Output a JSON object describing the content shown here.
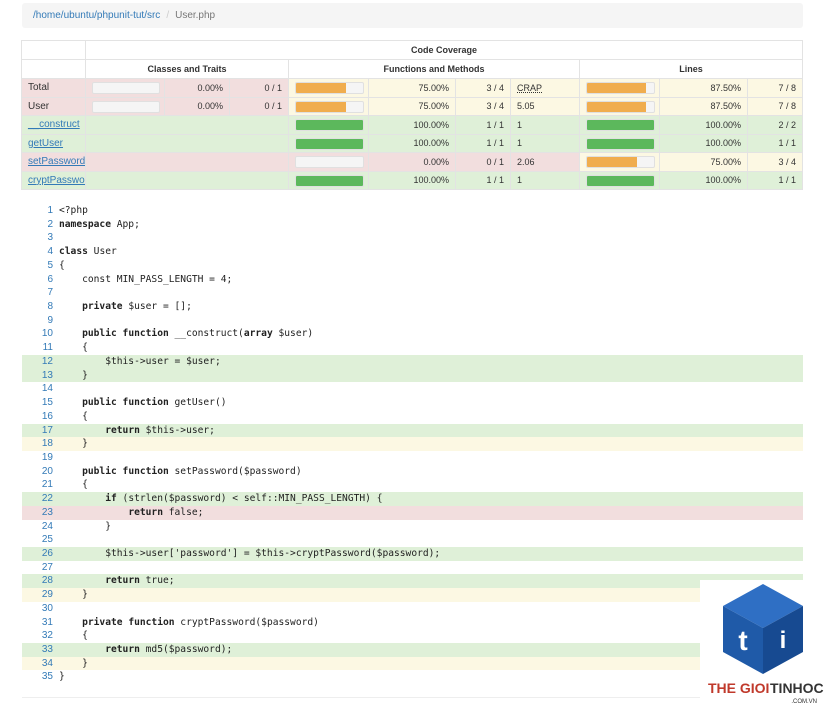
{
  "breadcrumb": {
    "path": "/home/ubuntu/phpunit-tut/src",
    "separator": "/",
    "file": "User.php"
  },
  "table": {
    "title": "Code Coverage",
    "groups": [
      "Classes and Traits",
      "Functions and Methods",
      "Lines"
    ],
    "rows": [
      {
        "name": "Total",
        "link": false,
        "level": "danger",
        "classes": {
          "percent": "0.00%",
          "ratio": "0 / 1",
          "level": "danger"
        },
        "functions": {
          "percent": "75.00%",
          "ratio": "3 / 4",
          "crap": "CRAP",
          "level": "warning"
        },
        "lines": {
          "percent": "87.50%",
          "ratio": "7 / 8",
          "level": "warning"
        }
      },
      {
        "name": "User",
        "link": false,
        "level": "danger",
        "classes": {
          "percent": "0.00%",
          "ratio": "0 / 1",
          "level": "danger"
        },
        "functions": {
          "percent": "75.00%",
          "ratio": "3 / 4",
          "crap": "5.05",
          "level": "warning"
        },
        "lines": {
          "percent": "87.50%",
          "ratio": "7 / 8",
          "level": "warning"
        }
      },
      {
        "name": "__construct",
        "link": true,
        "level": "success",
        "functions": {
          "percent": "100.00%",
          "ratio": "1 / 1",
          "crap": "1",
          "level": "success"
        },
        "lines": {
          "percent": "100.00%",
          "ratio": "2 / 2",
          "level": "success"
        }
      },
      {
        "name": "getUser",
        "link": true,
        "level": "success",
        "functions": {
          "percent": "100.00%",
          "ratio": "1 / 1",
          "crap": "1",
          "level": "success"
        },
        "lines": {
          "percent": "100.00%",
          "ratio": "1 / 1",
          "level": "success"
        }
      },
      {
        "name": "setPassword",
        "link": true,
        "level": "danger",
        "functions": {
          "percent": "0.00%",
          "ratio": "0 / 1",
          "crap": "2.06",
          "level": "danger"
        },
        "lines": {
          "percent": "75.00%",
          "ratio": "3 / 4",
          "level": "warning"
        }
      },
      {
        "name": "cryptPassword",
        "link": true,
        "level": "success",
        "functions": {
          "percent": "100.00%",
          "ratio": "1 / 1",
          "crap": "1",
          "level": "success"
        },
        "lines": {
          "percent": "100.00%",
          "ratio": "1 / 1",
          "level": "success"
        }
      }
    ]
  },
  "code": {
    "lines": [
      {
        "n": 1,
        "status": null,
        "code": [
          "<?php"
        ]
      },
      {
        "n": 2,
        "status": null,
        "code": [
          {
            "b": "namespace"
          },
          " App;"
        ]
      },
      {
        "n": 3,
        "status": null,
        "code": []
      },
      {
        "n": 4,
        "status": null,
        "code": [
          {
            "b": "class"
          },
          " User"
        ]
      },
      {
        "n": 5,
        "status": null,
        "code": [
          "{"
        ]
      },
      {
        "n": 6,
        "status": null,
        "code": [
          "    const MIN_PASS_LENGTH = 4;"
        ]
      },
      {
        "n": 7,
        "status": null,
        "code": []
      },
      {
        "n": 8,
        "status": null,
        "code": [
          "    ",
          {
            "b": "private"
          },
          " $user = [];"
        ]
      },
      {
        "n": 9,
        "status": null,
        "code": []
      },
      {
        "n": 10,
        "status": null,
        "code": [
          "    ",
          {
            "b": "public function"
          },
          " __construct(",
          {
            "b": "array"
          },
          " $user)"
        ]
      },
      {
        "n": 11,
        "status": null,
        "code": [
          "    {"
        ]
      },
      {
        "n": 12,
        "status": "success",
        "code": [
          "        $this->user = $user;"
        ]
      },
      {
        "n": 13,
        "status": "success",
        "code": [
          "    }"
        ]
      },
      {
        "n": 14,
        "status": null,
        "code": []
      },
      {
        "n": 15,
        "status": null,
        "code": [
          "    ",
          {
            "b": "public function"
          },
          " getUser()"
        ]
      },
      {
        "n": 16,
        "status": null,
        "code": [
          "    {"
        ]
      },
      {
        "n": 17,
        "status": "success",
        "code": [
          "        ",
          {
            "b": "return"
          },
          " $this->user;"
        ]
      },
      {
        "n": 18,
        "status": "warning",
        "code": [
          "    }"
        ]
      },
      {
        "n": 19,
        "status": null,
        "code": []
      },
      {
        "n": 20,
        "status": null,
        "code": [
          "    ",
          {
            "b": "public function"
          },
          " setPassword($password)"
        ]
      },
      {
        "n": 21,
        "status": null,
        "code": [
          "    {"
        ]
      },
      {
        "n": 22,
        "status": "success",
        "code": [
          "        ",
          {
            "b": "if"
          },
          " (strlen($password) < self::MIN_PASS_LENGTH) {"
        ]
      },
      {
        "n": 23,
        "status": "danger",
        "code": [
          "            ",
          {
            "b": "return"
          },
          " false;"
        ]
      },
      {
        "n": 24,
        "status": null,
        "code": [
          "        }"
        ]
      },
      {
        "n": 25,
        "status": null,
        "code": []
      },
      {
        "n": 26,
        "status": "success",
        "code": [
          "        $this->user['password'] = $this->cryptPassword($password);"
        ]
      },
      {
        "n": 27,
        "status": null,
        "code": []
      },
      {
        "n": 28,
        "status": "success",
        "code": [
          "        ",
          {
            "b": "return"
          },
          " true;"
        ]
      },
      {
        "n": 29,
        "status": "warning",
        "code": [
          "    }"
        ]
      },
      {
        "n": 30,
        "status": null,
        "code": []
      },
      {
        "n": 31,
        "status": null,
        "code": [
          "    ",
          {
            "b": "private function"
          },
          " cryptPassword($password)"
        ]
      },
      {
        "n": 32,
        "status": null,
        "code": [
          "    {"
        ]
      },
      {
        "n": 33,
        "status": "success",
        "code": [
          "        ",
          {
            "b": "return"
          },
          " md5($password);"
        ]
      },
      {
        "n": 34,
        "status": "warning",
        "code": [
          "    }"
        ]
      },
      {
        "n": 35,
        "status": null,
        "code": [
          "}"
        ]
      }
    ]
  },
  "watermark": {
    "letter1": "t",
    "letter2": "i",
    "brand1": "THE GIOI",
    "brand2": "TINHOC",
    "domain": ".COM.VN"
  }
}
